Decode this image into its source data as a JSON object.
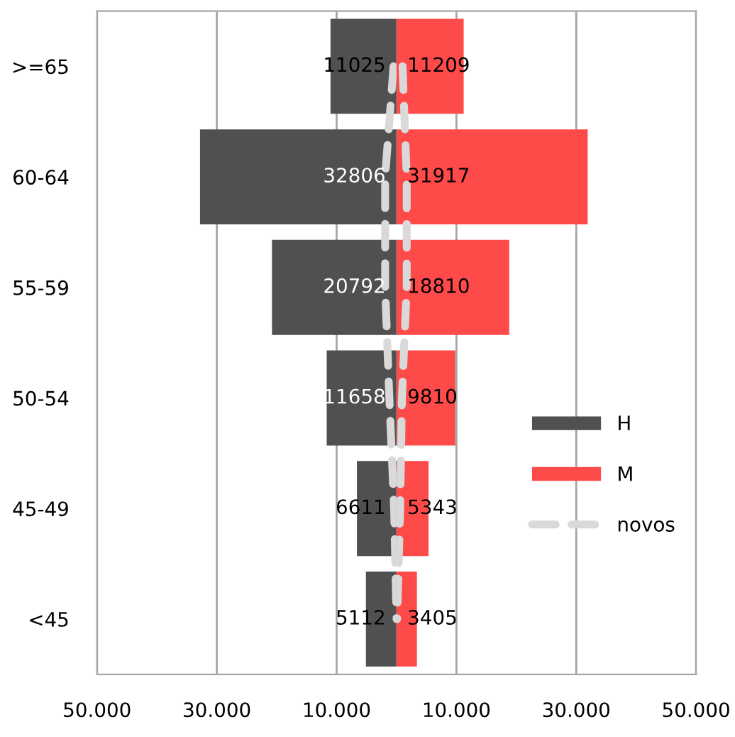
{
  "chart_data": [
    {
      "type": "bar",
      "orientation": "horizontal",
      "categories": [
        ">=65",
        "60-64",
        "55-59",
        "50-54",
        "45-49",
        "<45"
      ],
      "series": [
        {
          "name": "H",
          "color": "#505050",
          "values": [
            11025,
            32806,
            20792,
            11658,
            6611,
            5112
          ],
          "data_labels": true
        },
        {
          "name": "novos",
          "type": "line",
          "color": "#d9d9d9",
          "line_style": "dashed",
          "values": [
            500,
            1900,
            1900,
            1200,
            400,
            0
          ]
        }
      ],
      "xlim": [
        50000,
        0
      ],
      "xticks": [
        {
          "value": 50000,
          "label": "50.000"
        },
        {
          "value": 30000,
          "label": "30.000"
        },
        {
          "value": 10000,
          "label": "10.000"
        }
      ],
      "grid": "x",
      "legend": "right"
    },
    {
      "type": "bar",
      "orientation": "horizontal",
      "categories": [
        null,
        null,
        null,
        null,
        null,
        null
      ],
      "series": [
        {
          "name": "M",
          "color": "#ff4a4a",
          "values": [
            11209,
            31917,
            18810,
            9810,
            5343,
            3405
          ],
          "data_labels": true
        },
        {
          "type": "line",
          "color": "#d9d9d9",
          "line_style": "dashed",
          "values": [
            1000,
            1700,
            1700,
            900,
            600,
            100
          ]
        }
      ],
      "xlim": [
        0,
        50000
      ],
      "xticks": [
        {
          "value": 10000,
          "label": "10.000"
        },
        {
          "value": 30000,
          "label": "30.000"
        },
        {
          "value": 50000,
          "label": "50.000"
        }
      ],
      "grid": "x",
      "legend": "right"
    }
  ]
}
